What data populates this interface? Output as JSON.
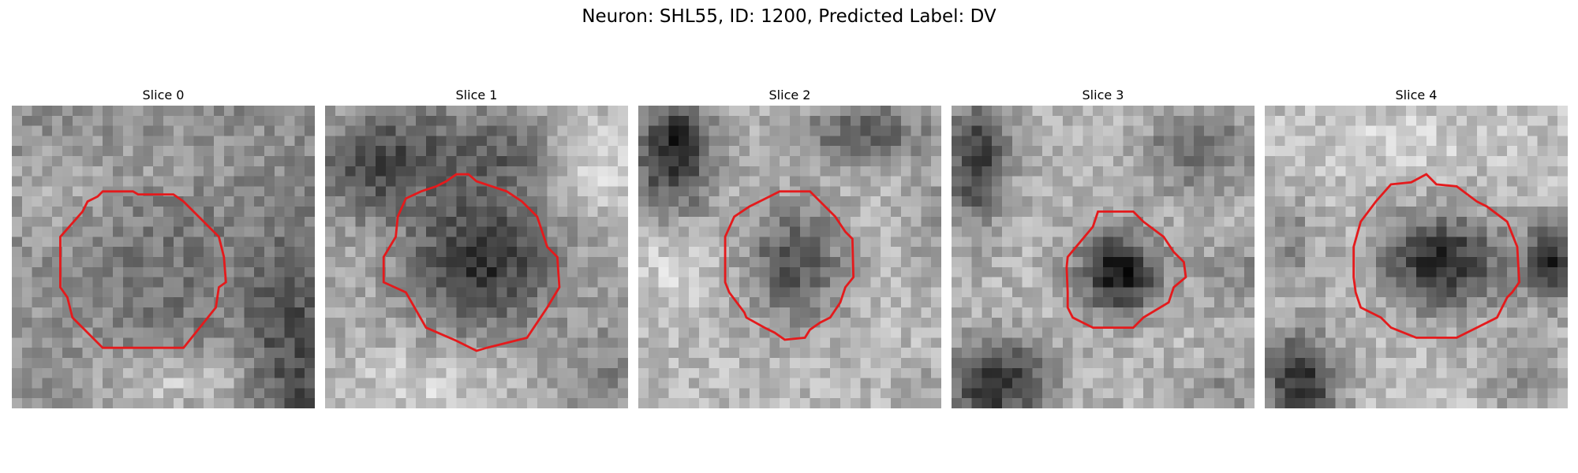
{
  "figure": {
    "title": "Neuron: SHL55, ID: 1200, Predicted Label: DV"
  },
  "contour_color": "#e41a1c",
  "slices": [
    {
      "title": "Slice 0"
    },
    {
      "title": "Slice 1"
    },
    {
      "title": "Slice 2"
    },
    {
      "title": "Slice 3"
    },
    {
      "title": "Slice 4"
    }
  ]
}
